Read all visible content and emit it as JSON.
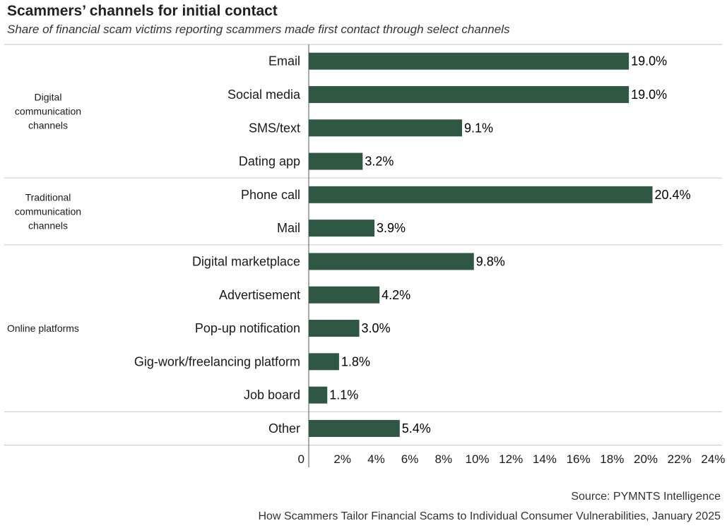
{
  "header": {
    "title": "Scammers’ channels for initial contact",
    "subtitle": "Share of financial scam victims reporting scammers made first contact through select channels"
  },
  "footer": {
    "source": "Source: PYMNTS Intelligence",
    "report": "How Scammers Tailor Financial Scams to Individual Consumer Vulnerabilities, January 2025"
  },
  "colors": {
    "bar": "#2f5744",
    "divider": "#cfcfcf",
    "axis": "#555555"
  },
  "chart_data": {
    "type": "bar",
    "orientation": "horizontal",
    "categories": [
      "Email",
      "Social media",
      "SMS/text",
      "Dating app",
      "Phone call",
      "Mail",
      "Digital marketplace",
      "Advertisement",
      "Pop-up notification",
      "Gig-work/freelancing platform",
      "Job board",
      "Other"
    ],
    "values": [
      19.0,
      19.0,
      9.1,
      3.2,
      20.4,
      3.9,
      9.8,
      4.2,
      3.0,
      1.8,
      1.1,
      5.4
    ],
    "value_labels": [
      "19.0%",
      "19.0%",
      "9.1%",
      "3.2%",
      "20.4%",
      "3.9%",
      "9.8%",
      "4.2%",
      "3.0%",
      "1.8%",
      "1.1%",
      "5.4%"
    ],
    "groups": [
      {
        "label_lines": [
          "Digital",
          "communication",
          "channels"
        ],
        "categories": [
          "Email",
          "Social media",
          "SMS/text",
          "Dating app"
        ]
      },
      {
        "label_lines": [
          "Traditional",
          "communication",
          "channels"
        ],
        "categories": [
          "Phone call",
          "Mail"
        ]
      },
      {
        "label_lines": [
          "Online platforms"
        ],
        "categories": [
          "Digital marketplace",
          "Advertisement",
          "Pop-up notification",
          "Gig-work/freelancing platform",
          "Job board"
        ]
      },
      {
        "label_lines": [],
        "categories": [
          "Other"
        ]
      }
    ],
    "xlim": [
      0,
      24
    ],
    "x_ticks": [
      0,
      2,
      4,
      6,
      8,
      10,
      12,
      14,
      16,
      18,
      20,
      22,
      24
    ],
    "x_tick_labels": [
      "0",
      "2%",
      "4%",
      "6%",
      "8%",
      "10%",
      "12%",
      "14%",
      "16%",
      "18%",
      "20%",
      "22%",
      "24%"
    ],
    "grid": false,
    "legend": "none"
  }
}
